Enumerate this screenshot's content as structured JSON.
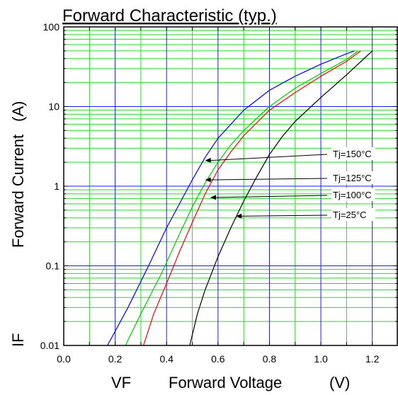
{
  "chart_data": {
    "type": "line",
    "title": "Forward Characteristic  (typ.)",
    "xlabel_symbol": "VF",
    "xlabel": "Forward Voltage",
    "xlabel_unit": "(V)",
    "ylabel_symbol": "IF",
    "ylabel": "Forward Current",
    "ylabel_unit": "(A)",
    "x_scale": "linear",
    "y_scale": "log",
    "xlim": [
      0.0,
      1.3
    ],
    "ylim": [
      0.01,
      100
    ],
    "x_ticks": [
      "0.0",
      "0.2",
      "0.4",
      "0.6",
      "0.8",
      "1.0",
      "1.2"
    ],
    "y_ticks": [
      "0.01",
      "0.1",
      "1",
      "10",
      "100"
    ],
    "grid": true,
    "colors": {
      "major_grid": "#1a1aff",
      "minor_grid": "#22dd22",
      "axes": "#000000"
    },
    "series": [
      {
        "name": "Tj=150°C",
        "color": "#0000ff",
        "x": [
          0.17,
          0.25,
          0.33,
          0.4,
          0.45,
          0.5,
          0.55,
          0.6,
          0.7,
          0.8,
          0.9,
          1.0,
          1.1,
          1.13
        ],
        "y": [
          0.01,
          0.03,
          0.1,
          0.3,
          0.6,
          1.2,
          2.3,
          4.0,
          9.0,
          16.0,
          24.0,
          34.0,
          46.0,
          50.0
        ]
      },
      {
        "name": "Tj=125°C",
        "color": "#00cc00",
        "x": [
          0.24,
          0.3,
          0.38,
          0.45,
          0.5,
          0.55,
          0.6,
          0.65,
          0.7,
          0.8,
          0.9,
          1.0,
          1.1,
          1.145
        ],
        "y": [
          0.01,
          0.025,
          0.08,
          0.25,
          0.55,
          1.1,
          2.0,
          3.3,
          5.0,
          10.0,
          17.0,
          26.0,
          39.0,
          50.0
        ]
      },
      {
        "name": "Tj=100°C",
        "color": "#ff0000",
        "x": [
          0.31,
          0.35,
          0.4,
          0.45,
          0.5,
          0.55,
          0.6,
          0.65,
          0.7,
          0.8,
          0.9,
          1.0,
          1.1,
          1.155
        ],
        "y": [
          0.01,
          0.025,
          0.06,
          0.15,
          0.35,
          0.8,
          1.6,
          2.7,
          4.3,
          9.0,
          15.0,
          24.0,
          37.0,
          50.0
        ]
      },
      {
        "name": "Tj=25°C",
        "color": "#000000",
        "x": [
          0.49,
          0.52,
          0.55,
          0.6,
          0.65,
          0.7,
          0.75,
          0.8,
          0.85,
          0.9,
          1.0,
          1.1,
          1.2
        ],
        "y": [
          0.01,
          0.025,
          0.05,
          0.13,
          0.3,
          0.65,
          1.3,
          2.5,
          4.2,
          6.5,
          13.0,
          25.0,
          50.0
        ]
      }
    ],
    "annotations": [
      {
        "text": "Tj=150°C",
        "series": 0,
        "arrow_to": [
          0.55,
          2.1
        ]
      },
      {
        "text": "Tj=125°C",
        "series": 1,
        "arrow_to": [
          0.55,
          1.2
        ]
      },
      {
        "text": "Tj=100°C",
        "series": 2,
        "arrow_to": [
          0.57,
          0.72
        ]
      },
      {
        "text": "Tj=25°C",
        "series": 3,
        "arrow_to": [
          0.67,
          0.42
        ]
      }
    ]
  }
}
